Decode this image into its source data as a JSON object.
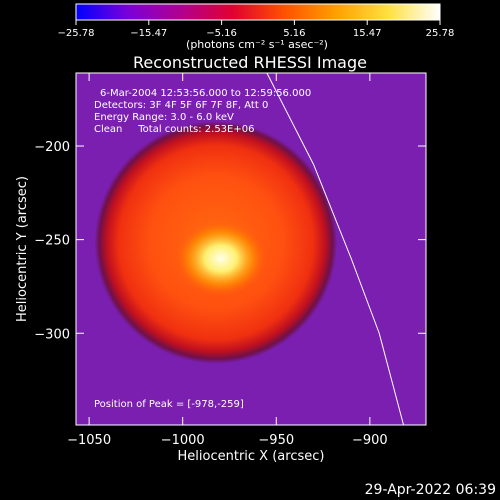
{
  "chart_data": {
    "type": "heatmap",
    "title": "Reconstructed RHESSI Image",
    "xlabel": "Heliocentric X (arcsec)",
    "ylabel": "Heliocentric Y (arcsec)",
    "xlim": [
      -1057,
      -870
    ],
    "ylim": [
      -349,
      -161
    ],
    "xticks": [
      -1050,
      -1000,
      -950,
      -900
    ],
    "xtick_labels": [
      "−1050",
      "−1000",
      "−950",
      "−900"
    ],
    "yticks": [
      -200,
      -250,
      -300
    ],
    "ytick_labels": [
      "−200",
      "−250",
      "−300"
    ],
    "colorbar": {
      "min": -25.78,
      "max": 25.78,
      "tick_labels": [
        "−25.78",
        "−15.47",
        "−5.16",
        "5.16",
        "15.47",
        "25.78"
      ],
      "unit_label": "(photons cm⁻² s⁻¹ asec⁻²)",
      "colormap": [
        "#0000ff",
        "#7a00d8",
        "#b00090",
        "#e00030",
        "#ff5000",
        "#ffa000",
        "#ffe040",
        "#ffffff"
      ]
    },
    "source": {
      "center_x": -978,
      "center_y": -259,
      "core_radius": 54,
      "peak": [
        -978,
        -259
      ]
    },
    "limb_line": [
      [
        -955,
        -161
      ],
      [
        -930,
        -210
      ],
      [
        -910,
        -260
      ],
      [
        -895,
        -300
      ],
      [
        -882,
        -349
      ]
    ],
    "annotations": {
      "time_range": "6-Mar-2004 12:53:56.000 to 12:59:56.000",
      "detectors": "Detectors: 3F 4F 5F 6F 7F 8F, Att 0",
      "energy": "Energy Range: 3.0 - 6.0 keV",
      "method_counts": "Clean     Total counts: 2.53E+06",
      "peak": "Position of Peak = [-978,-259]"
    },
    "legend": "none",
    "grid": false
  },
  "footer": {
    "timestamp": "29-Apr-2022 06:39"
  }
}
